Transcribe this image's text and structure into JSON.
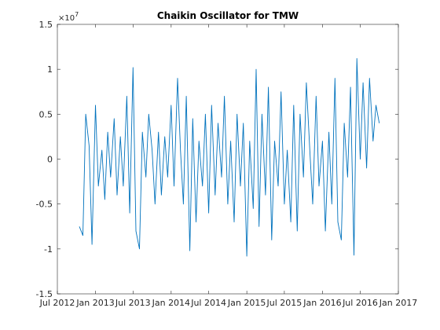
{
  "chart_data": {
    "type": "line",
    "title": "Chaikin Oscillator for TMW",
    "xlabel": "",
    "ylabel": "",
    "y_exponent_label": "×10",
    "y_exponent_power": "7",
    "xlim": [
      "2012-07-01",
      "2017-01-01"
    ],
    "ylim": [
      -1.5,
      1.5
    ],
    "x_ticks": [
      "Jul 2012",
      "Jan 2013",
      "Jul 2013",
      "Jan 2014",
      "Jul 2014",
      "Jan 2015",
      "Jul 2015",
      "Jan 2016",
      "Jul 2016",
      "Jan 2017"
    ],
    "y_ticks": [
      "-1.5",
      "-1",
      "-0.5",
      "0",
      "0.5",
      "1",
      "1.5"
    ],
    "grid": false,
    "legend": "none",
    "colors": {
      "series": "#0072BD",
      "axis": "#262626"
    },
    "series": [
      {
        "x": [
          "2012-10-15",
          "2012-11-01",
          "2012-11-15",
          "2012-12-01",
          "2012-12-15",
          "2013-01-01",
          "2013-01-15",
          "2013-02-01",
          "2013-02-15",
          "2013-03-01",
          "2013-03-15",
          "2013-04-01",
          "2013-04-15",
          "2013-05-01",
          "2013-05-15",
          "2013-06-01",
          "2013-06-15",
          "2013-07-01",
          "2013-07-15",
          "2013-08-01",
          "2013-08-15",
          "2013-09-01",
          "2013-09-15",
          "2013-10-01",
          "2013-10-15",
          "2013-11-01",
          "2013-11-15",
          "2013-12-01",
          "2013-12-15",
          "2014-01-01",
          "2014-01-15",
          "2014-02-01",
          "2014-02-15",
          "2014-03-01",
          "2014-03-15",
          "2014-04-01",
          "2014-04-15",
          "2014-05-01",
          "2014-05-15",
          "2014-06-01",
          "2014-06-15",
          "2014-07-01",
          "2014-07-15",
          "2014-08-01",
          "2014-08-15",
          "2014-09-01",
          "2014-09-15",
          "2014-10-01",
          "2014-10-15",
          "2014-11-01",
          "2014-11-15",
          "2014-12-01",
          "2014-12-15",
          "2015-01-01",
          "2015-01-15",
          "2015-02-01",
          "2015-02-15",
          "2015-03-01",
          "2015-03-15",
          "2015-04-01",
          "2015-04-15",
          "2015-05-01",
          "2015-05-15",
          "2015-06-01",
          "2015-06-15",
          "2015-07-01",
          "2015-07-15",
          "2015-08-01",
          "2015-08-15",
          "2015-09-01",
          "2015-09-15",
          "2015-10-01",
          "2015-10-15",
          "2015-11-01",
          "2015-11-15",
          "2015-12-01",
          "2015-12-15",
          "2016-01-01",
          "2016-01-15",
          "2016-02-01",
          "2016-02-15",
          "2016-03-01",
          "2016-03-15",
          "2016-04-01",
          "2016-04-15",
          "2016-05-01",
          "2016-05-15",
          "2016-06-01",
          "2016-06-15",
          "2016-07-01",
          "2016-07-15",
          "2016-08-01",
          "2016-08-15",
          "2016-09-01",
          "2016-09-15",
          "2016-10-01"
        ],
        "y": [
          -0.75,
          -0.85,
          0.5,
          0.15,
          -0.95,
          0.6,
          -0.3,
          0.1,
          -0.45,
          0.3,
          -0.2,
          0.45,
          -0.4,
          0.25,
          -0.3,
          0.7,
          -0.6,
          1.02,
          -0.8,
          -1.0,
          0.3,
          -0.2,
          0.5,
          0.1,
          -0.5,
          0.3,
          -0.4,
          0.25,
          -0.2,
          0.6,
          -0.3,
          0.9,
          0.1,
          -0.5,
          0.7,
          -1.02,
          0.45,
          -0.7,
          0.2,
          -0.3,
          0.5,
          -0.6,
          0.6,
          -0.4,
          0.4,
          -0.2,
          0.7,
          -0.5,
          0.2,
          -0.7,
          0.5,
          -0.3,
          0.4,
          -1.08,
          0.2,
          -0.55,
          1.0,
          -0.75,
          0.5,
          -0.4,
          0.8,
          -0.9,
          0.2,
          -0.3,
          0.75,
          -0.5,
          0.1,
          -0.7,
          0.6,
          -0.8,
          0.5,
          -0.2,
          0.85,
          0.1,
          -0.5,
          0.7,
          -0.3,
          0.2,
          -0.8,
          0.3,
          -0.5,
          0.9,
          -0.7,
          -0.9,
          0.4,
          -0.2,
          0.8,
          -1.07,
          1.12,
          0.0,
          0.85,
          -0.1,
          0.9,
          0.2,
          0.6,
          0.4
        ]
      }
    ]
  }
}
